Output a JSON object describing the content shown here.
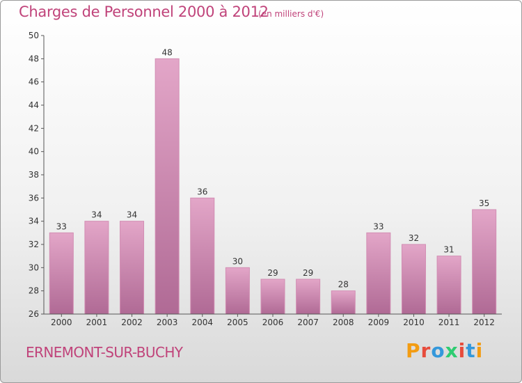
{
  "header": {
    "title": "Charges de Personnel 2000 à 2012",
    "subtitle": "(en milliers d'€)"
  },
  "footer": {
    "location": "ERNEMONT-SUR-BUCHY",
    "logo_text": "Proxiti",
    "logo_colors": [
      "#f39c12",
      "#e74c3c",
      "#3498db",
      "#2ecc71",
      "#e74c3c",
      "#3498db",
      "#f39c12"
    ]
  },
  "colors": {
    "title": "#c0437a",
    "bar_top": "#e3a6c8",
    "bar_bottom": "#b06a95",
    "bar_stroke": "#d28db3",
    "axis": "#555555"
  },
  "chart_data": {
    "type": "bar",
    "categories": [
      "2000",
      "2001",
      "2002",
      "2003",
      "2004",
      "2005",
      "2006",
      "2007",
      "2008",
      "2009",
      "2010",
      "2011",
      "2012"
    ],
    "values": [
      33,
      34,
      34,
      48,
      36,
      30,
      29,
      29,
      28,
      33,
      32,
      31,
      35
    ],
    "title": "Charges de Personnel 2000 à 2012",
    "subtitle": "(en milliers d'€)",
    "ylim": [
      26,
      50
    ],
    "yticks": [
      26,
      28,
      30,
      32,
      34,
      36,
      38,
      40,
      42,
      44,
      46,
      48,
      50
    ],
    "grid": false,
    "legend": "none"
  }
}
